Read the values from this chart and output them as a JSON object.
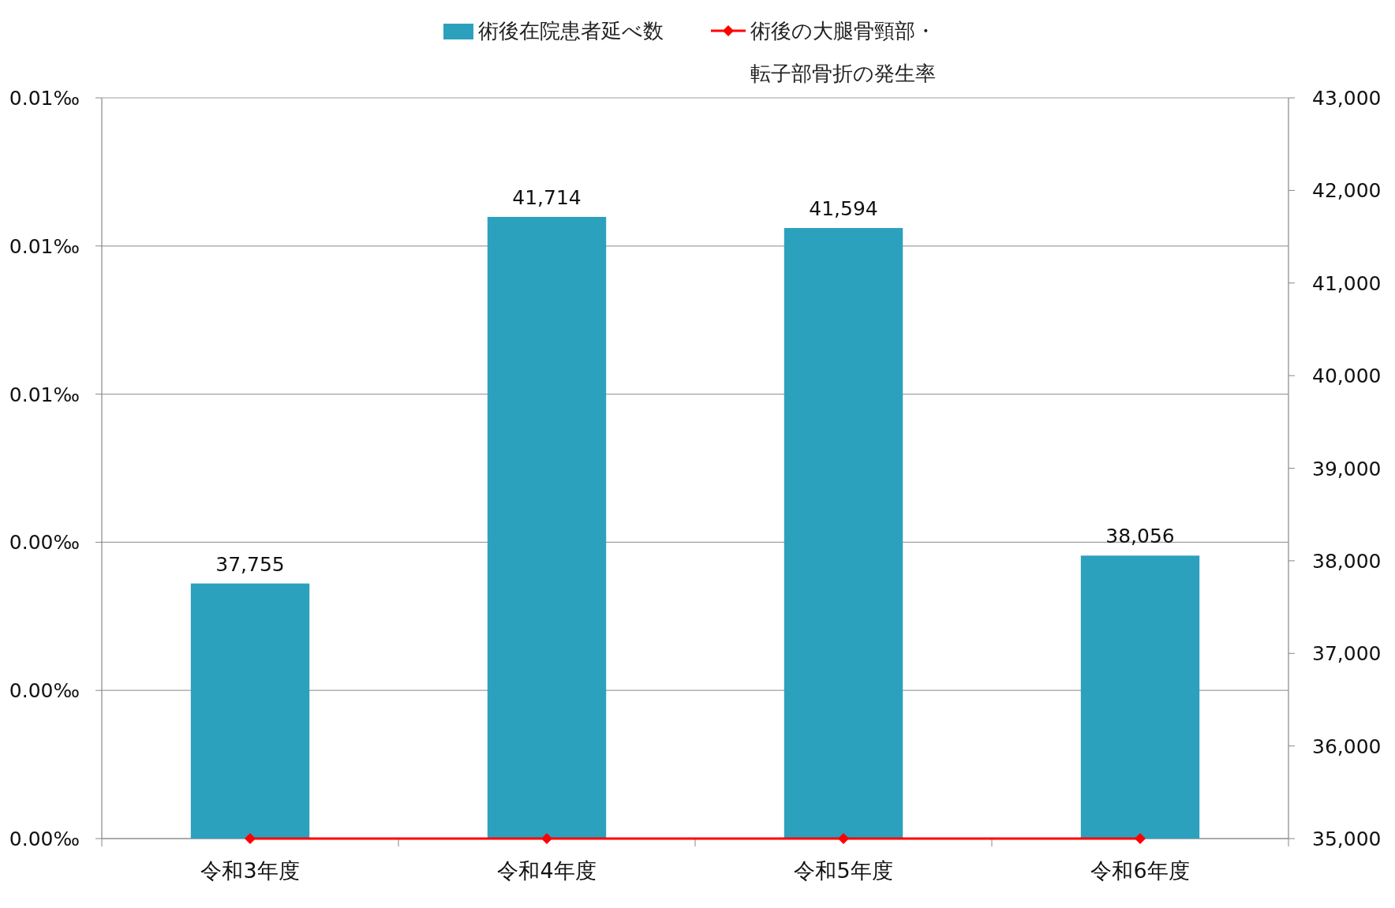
{
  "chart_data": {
    "type": "bar",
    "categories": [
      "令和3年度",
      "令和4年度",
      "令和5年度",
      "令和6年度"
    ],
    "series": [
      {
        "name": "術後在院患者延べ数",
        "axis": "y2",
        "color": "#2ca1be",
        "values": [
          37755,
          41714,
          41594,
          38056
        ],
        "value_labels": [
          "37,755",
          "41,714",
          "41,594",
          "38,056"
        ]
      },
      {
        "name": "術後の大腿骨頸部・転子部骨折の発生率",
        "type": "line",
        "color": "#ff0000",
        "marker": "diamond",
        "values": [
          0,
          0,
          0,
          0
        ]
      }
    ],
    "ylim": [
      0,
      0.01
    ],
    "yticks": [
      {
        "value": 0,
        "label": "0.00‰"
      },
      {
        "value": 0.002,
        "label": "0.00‰"
      },
      {
        "value": 0.004,
        "label": "0.00‰"
      },
      {
        "value": 0.006,
        "label": "0.01‰"
      },
      {
        "value": 0.008,
        "label": "0.01‰"
      },
      {
        "value": 0.01,
        "label": "0.01‰"
      }
    ],
    "y2lim": [
      35000,
      43000
    ],
    "y2ticks": [
      {
        "value": 35000,
        "label": "35,000"
      },
      {
        "value": 36000,
        "label": "36,000"
      },
      {
        "value": 37000,
        "label": "37,000"
      },
      {
        "value": 38000,
        "label": "38,000"
      },
      {
        "value": 39000,
        "label": "39,000"
      },
      {
        "value": 40000,
        "label": "40,000"
      },
      {
        "value": 41000,
        "label": "41,000"
      },
      {
        "value": 42000,
        "label": "42,000"
      },
      {
        "value": 43000,
        "label": "43,000"
      }
    ],
    "grid": "y",
    "legend": "top"
  }
}
